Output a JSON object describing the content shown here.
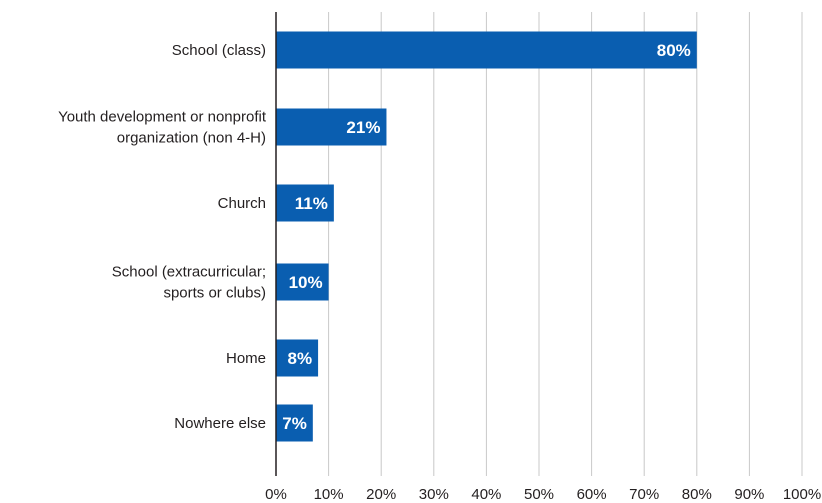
{
  "chart_data": {
    "type": "bar",
    "orientation": "horizontal",
    "categories": [
      [
        "School (class)"
      ],
      [
        "Youth development or nonprofit",
        "organization (non 4-H)"
      ],
      [
        "Church"
      ],
      [
        "School (extracurricular;",
        "sports or clubs)"
      ],
      [
        "Home"
      ],
      [
        "Nowhere else"
      ]
    ],
    "values": [
      80,
      21,
      11,
      10,
      8,
      7
    ],
    "data_labels": [
      "80%",
      "21%",
      "11%",
      "10%",
      "8%",
      "7%"
    ],
    "xlim": [
      0,
      100
    ],
    "x_ticks": [
      "0%",
      "10%",
      "20%",
      "30%",
      "40%",
      "50%",
      "60%",
      "70%",
      "80%",
      "90%",
      "100%"
    ],
    "grid": "vertical",
    "colors": {
      "bar": "#0a5eb0",
      "grid": "#c8c8c8",
      "axis": "#231f20",
      "data_label": "#ffffff"
    }
  }
}
